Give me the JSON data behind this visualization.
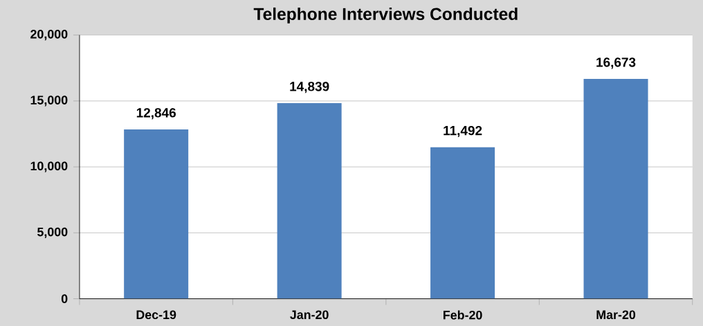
{
  "chart_data": {
    "type": "bar",
    "title": "Telephone Interviews Conducted",
    "categories": [
      "Dec-19",
      "Jan-20",
      "Feb-20",
      "Mar-20"
    ],
    "values": [
      12846,
      14839,
      11492,
      16673
    ],
    "value_labels": [
      "12,846",
      "14,839",
      "11,492",
      "16,673"
    ],
    "color": "#4f81bd",
    "ylim": [
      0,
      20000
    ],
    "yticks": [
      {
        "value": 0,
        "label": "0"
      },
      {
        "value": 5000,
        "label": "5,000"
      },
      {
        "value": 10000,
        "label": "10,000"
      },
      {
        "value": 15000,
        "label": "15,000"
      },
      {
        "value": 20000,
        "label": "20,000"
      }
    ],
    "grid": "y"
  }
}
